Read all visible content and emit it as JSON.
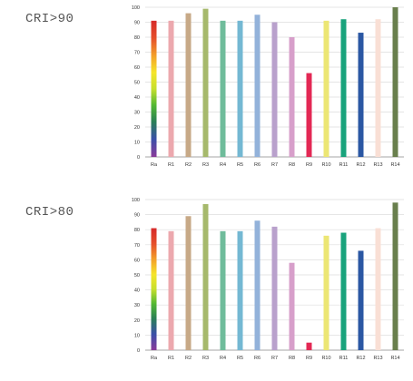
{
  "panels": [
    {
      "label": "CRI>90"
    },
    {
      "label": "CRI>80"
    }
  ],
  "chart_data": [
    {
      "type": "bar",
      "categories": [
        "Ra",
        "R1",
        "R2",
        "R3",
        "R4",
        "R5",
        "R6",
        "R7",
        "R8",
        "R9",
        "R10",
        "R11",
        "R12",
        "R13",
        "R14"
      ],
      "values": [
        91,
        91,
        96,
        99,
        91,
        91,
        95,
        90,
        80,
        56,
        91,
        92,
        83,
        92,
        100
      ],
      "ylim": [
        0,
        100
      ],
      "yticks": [
        0,
        10,
        20,
        30,
        40,
        50,
        60,
        70,
        80,
        90,
        100
      ],
      "grid": true,
      "colors": [
        "rainbow",
        "#eca8ae",
        "#c7a987",
        "#a6b96c",
        "#6fbc9b",
        "#74b8d3",
        "#93b2da",
        "#b9a1cc",
        "#d79fca",
        "#e32854",
        "#ece674",
        "#19a37c",
        "#2b57a3",
        "#f9dfd5",
        "#697f4d"
      ]
    },
    {
      "type": "bar",
      "categories": [
        "Ra",
        "R1",
        "R2",
        "R3",
        "R4",
        "R5",
        "R6",
        "R7",
        "R8",
        "R9",
        "R10",
        "R11",
        "R12",
        "R13",
        "R14"
      ],
      "values": [
        81,
        79,
        89,
        97,
        79,
        79,
        86,
        82,
        58,
        5,
        76,
        78,
        66,
        81,
        98
      ],
      "ylim": [
        0,
        100
      ],
      "yticks": [
        0,
        10,
        20,
        30,
        40,
        50,
        60,
        70,
        80,
        90,
        100
      ],
      "grid": true,
      "colors": [
        "rainbow",
        "#eca8ae",
        "#c7a987",
        "#a6b96c",
        "#6fbc9b",
        "#74b8d3",
        "#93b2da",
        "#b9a1cc",
        "#d79fca",
        "#e32854",
        "#ece674",
        "#19a37c",
        "#2b57a3",
        "#f9dfd5",
        "#697f4d"
      ]
    }
  ]
}
